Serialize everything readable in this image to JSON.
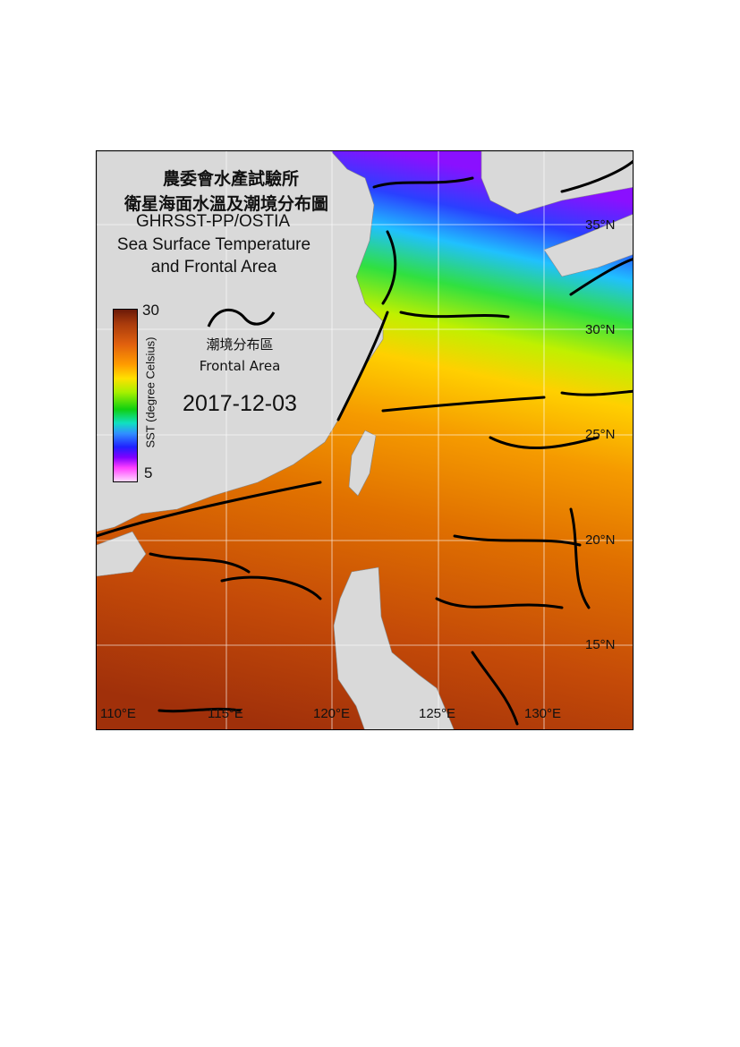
{
  "title": {
    "line1": "農委會水產試驗所",
    "line2": "衛星海面水溫及潮境分布圖",
    "line3": "GHRSST-PP/OSTIA",
    "line4": "Sea Surface Temperature",
    "line5": "and Frontal Area"
  },
  "legend": {
    "front_label_zh": "潮境分布區",
    "front_label_en": "Frontal Area",
    "colorbar": {
      "max": "30",
      "min": "5",
      "label": "SST (degree Celsius)"
    }
  },
  "date": "2017-12-03",
  "axes": {
    "longitude": [
      "110°E",
      "115°E",
      "120°E",
      "125°E",
      "130°E"
    ],
    "latitude": [
      "35°N",
      "30°N",
      "25°N",
      "20°N",
      "15°N"
    ]
  },
  "colors": {
    "land": "#d9d9d9",
    "front": "#000000",
    "grid": "#ffffff"
  }
}
